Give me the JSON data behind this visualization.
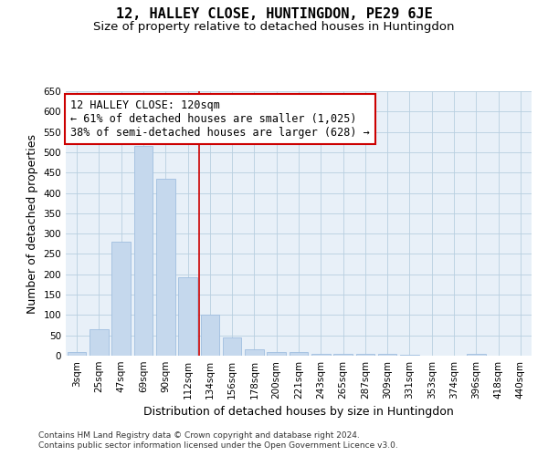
{
  "title": "12, HALLEY CLOSE, HUNTINGDON, PE29 6JE",
  "subtitle": "Size of property relative to detached houses in Huntingdon",
  "xlabel": "Distribution of detached houses by size in Huntingdon",
  "ylabel": "Number of detached properties",
  "categories": [
    "3sqm",
    "25sqm",
    "47sqm",
    "69sqm",
    "90sqm",
    "112sqm",
    "134sqm",
    "156sqm",
    "178sqm",
    "200sqm",
    "221sqm",
    "243sqm",
    "265sqm",
    "287sqm",
    "309sqm",
    "331sqm",
    "353sqm",
    "374sqm",
    "396sqm",
    "418sqm",
    "440sqm"
  ],
  "values": [
    10,
    65,
    280,
    515,
    435,
    193,
    100,
    45,
    15,
    10,
    10,
    5,
    5,
    5,
    4,
    3,
    0,
    0,
    4,
    0,
    0
  ],
  "bar_color": "#c5d8ed",
  "bar_edgecolor": "#a0bee0",
  "vline_x": 5.5,
  "vline_color": "#cc0000",
  "annotation_text": "12 HALLEY CLOSE: 120sqm\n← 61% of detached houses are smaller (1,025)\n38% of semi-detached houses are larger (628) →",
  "annotation_box_color": "#ffffff",
  "annotation_box_edgecolor": "#cc0000",
  "ylim": [
    0,
    650
  ],
  "yticks": [
    0,
    50,
    100,
    150,
    200,
    250,
    300,
    350,
    400,
    450,
    500,
    550,
    600,
    650
  ],
  "footer1": "Contains HM Land Registry data © Crown copyright and database right 2024.",
  "footer2": "Contains public sector information licensed under the Open Government Licence v3.0.",
  "plot_bg_color": "#e8f0f8",
  "title_fontsize": 11,
  "subtitle_fontsize": 9.5,
  "axis_label_fontsize": 9,
  "tick_fontsize": 7.5,
  "annotation_fontsize": 8.5,
  "footer_fontsize": 6.5
}
